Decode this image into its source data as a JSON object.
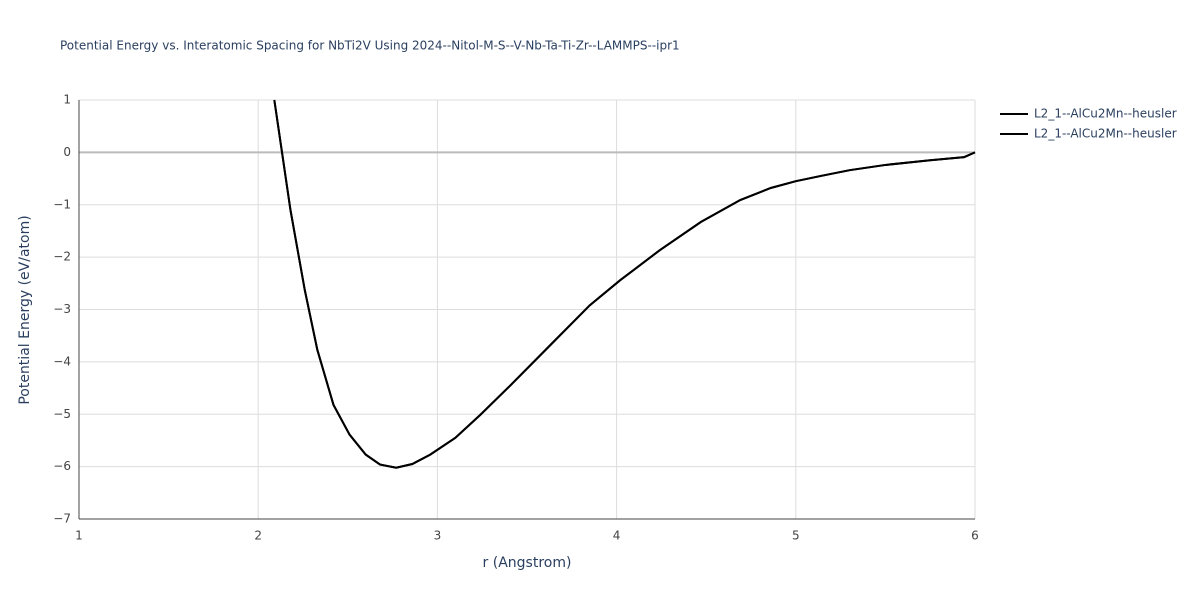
{
  "chart_data": {
    "type": "line",
    "title": "Potential Energy vs. Interatomic Spacing for NbTi2V Using 2024--Nitol-M-S--V-Nb-Ta-Ti-Zr--LAMMPS--ipr1",
    "x_label": "r (Angstrom)",
    "y_label": "Potential Energy (eV/atom)",
    "x": [
      2.09,
      2.18,
      2.26,
      2.33,
      2.42,
      2.51,
      2.6,
      2.68,
      2.77,
      2.86,
      2.96,
      3.1,
      3.24,
      3.41,
      3.63,
      3.85,
      4.02,
      4.24,
      4.47,
      4.69,
      4.86,
      5.0,
      5.14,
      5.3,
      5.5,
      5.75,
      5.94,
      6.0
    ],
    "series": [
      {
        "name": "L2_1--AlCu2Mn--heusler",
        "color": "#000000",
        "values": [
          1,
          -1.1,
          -2.63,
          -3.77,
          -4.82,
          -5.39,
          -5.77,
          -5.96,
          -6.02,
          -5.95,
          -5.77,
          -5.45,
          -5.01,
          -4.44,
          -3.68,
          -2.92,
          -2.44,
          -1.87,
          -1.33,
          -0.91,
          -0.68,
          -0.55,
          -0.45,
          -0.34,
          -0.24,
          -0.15,
          -0.09,
          0
        ]
      },
      {
        "name": "L2_1--AlCu2Mn--heusler",
        "color": "#000000",
        "values": [
          1,
          -1.1,
          -2.63,
          -3.77,
          -4.82,
          -5.39,
          -5.77,
          -5.96,
          -6.02,
          -5.95,
          -5.77,
          -5.45,
          -5.01,
          -4.44,
          -3.68,
          -2.92,
          -2.44,
          -1.87,
          -1.33,
          -0.91,
          -0.68,
          -0.55,
          -0.45,
          -0.34,
          -0.24,
          -0.15,
          -0.09,
          0
        ]
      }
    ],
    "xlim": [
      1,
      6
    ],
    "xticks": [
      1,
      2,
      3,
      4,
      5,
      6
    ],
    "ylim": [
      -7,
      1
    ],
    "yticks": [
      {
        "value": -7,
        "label": "−7"
      },
      {
        "value": -6,
        "label": "−6"
      },
      {
        "value": -5,
        "label": "−5"
      },
      {
        "value": -4,
        "label": "−4"
      },
      {
        "value": -3,
        "label": "−3"
      },
      {
        "value": -2,
        "label": "−2"
      },
      {
        "value": -1,
        "label": "−1"
      },
      0,
      1
    ],
    "grid": true
  }
}
